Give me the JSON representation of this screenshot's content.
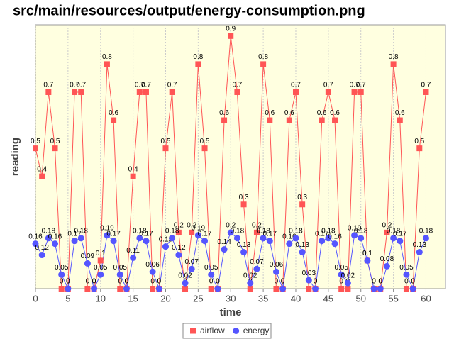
{
  "chart_data": {
    "type": "line",
    "title": "src/main/resources/output/energy-consumption.png",
    "x_label": "time",
    "y_label": "reading",
    "x": [
      0,
      1,
      2,
      3,
      4,
      5,
      6,
      7,
      8,
      9,
      10,
      11,
      12,
      13,
      14,
      15,
      16,
      17,
      18,
      19,
      20,
      21,
      22,
      23,
      24,
      25,
      26,
      27,
      28,
      29,
      30,
      31,
      32,
      33,
      34,
      35,
      36,
      37,
      38,
      39,
      40,
      41,
      42,
      43,
      44,
      45,
      46,
      47,
      48,
      49,
      50,
      51,
      52,
      53,
      54,
      55,
      56,
      57,
      58,
      59,
      60
    ],
    "series": [
      {
        "name": "airflow",
        "color": "#ff5555",
        "marker": "square",
        "values": [
          0.5,
          0.4,
          0.7,
          0.5,
          0,
          0,
          0.7,
          0.7,
          0,
          0,
          0.1,
          0.8,
          0.6,
          0,
          0,
          0.4,
          0.7,
          0.7,
          0,
          0,
          0.5,
          0.7,
          0.2,
          0,
          0.2,
          0.8,
          0.5,
          0,
          0,
          0.6,
          0.9,
          0.7,
          0.3,
          0,
          0.2,
          0.8,
          0.6,
          0,
          0,
          0.6,
          0.7,
          0.3,
          0,
          0,
          0.6,
          0.7,
          0.6,
          0,
          0,
          0.7,
          0.7,
          0.1,
          0,
          0,
          0.2,
          0.8,
          0.6,
          0,
          0,
          0.5,
          0.7
        ]
      },
      {
        "name": "energy",
        "color": "#5555ff",
        "marker": "circle",
        "values": [
          0.16,
          0.12,
          0.18,
          0.16,
          0.05,
          0,
          0.17,
          0.18,
          0.09,
          0,
          0.05,
          0.19,
          0.17,
          0.05,
          0,
          0.11,
          0.18,
          0.17,
          0.06,
          0,
          0.15,
          0.18,
          0.12,
          0.02,
          0.07,
          0.19,
          0.17,
          0.05,
          0,
          0.14,
          0.2,
          0.18,
          0.13,
          0.02,
          0.07,
          0.18,
          0.17,
          0.06,
          0,
          0.16,
          0.18,
          0.13,
          0.03,
          0,
          0.17,
          0.18,
          0.16,
          0.05,
          0.02,
          0.19,
          0.18,
          0.1,
          0,
          0,
          0.08,
          0.18,
          0.17,
          0.05,
          0,
          0.13,
          0.18
        ]
      }
    ],
    "xlim": [
      0,
      63
    ],
    "ylim": [
      0,
      0.94
    ],
    "xticks": [
      0,
      5,
      10,
      15,
      20,
      25,
      30,
      35,
      40,
      45,
      50,
      55,
      60
    ],
    "grid": true,
    "legend": "bottom"
  }
}
